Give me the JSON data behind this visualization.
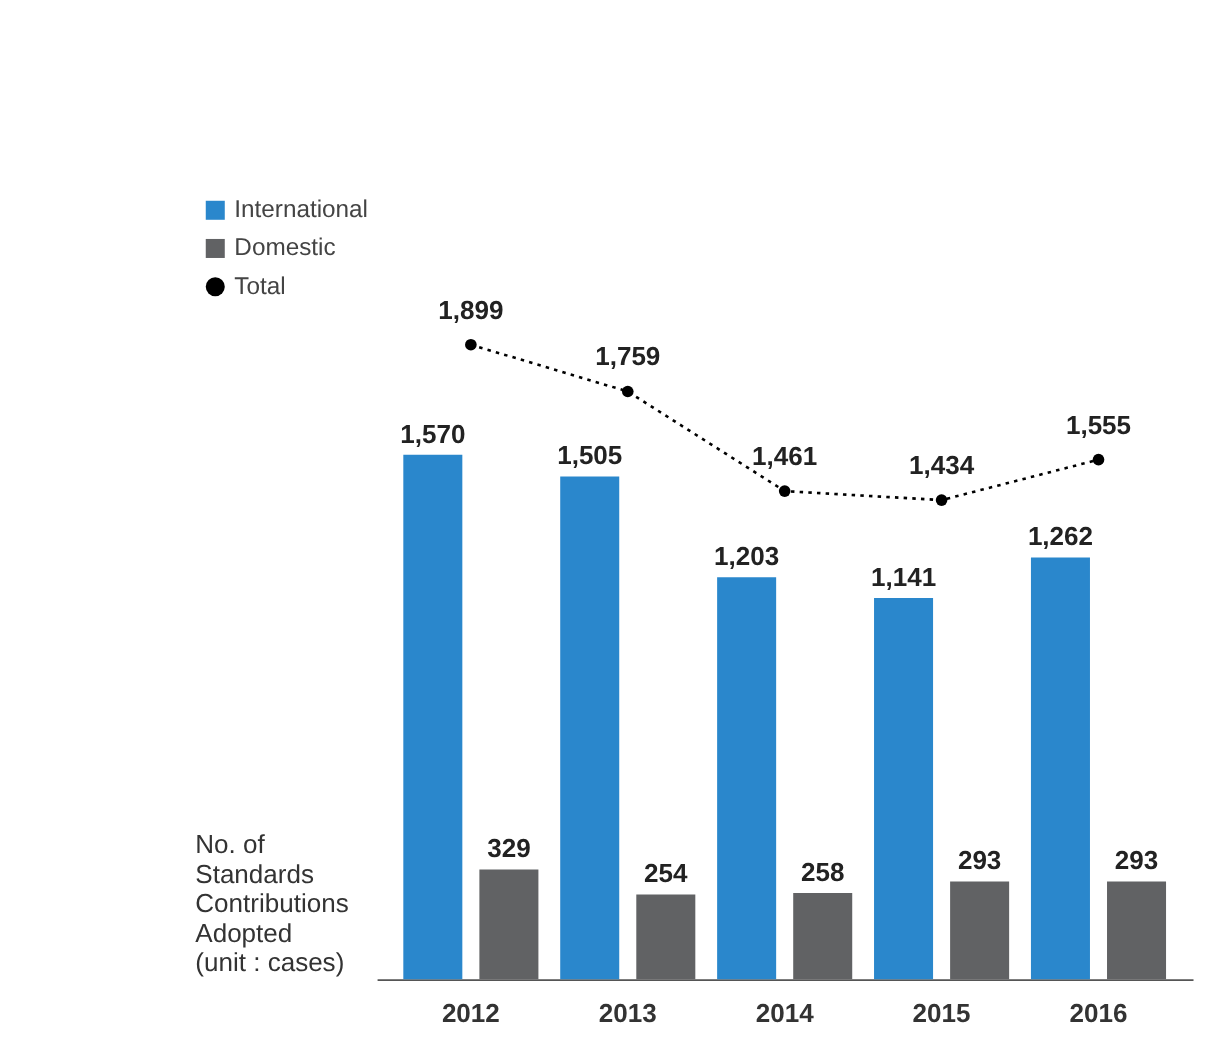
{
  "chart_data": {
    "type": "bar",
    "categories": [
      "2012",
      "2013",
      "2014",
      "2015",
      "2016"
    ],
    "series": [
      {
        "name": "International",
        "color": "#2a87cc",
        "values": [
          1570,
          1505,
          1203,
          1141,
          1262
        ],
        "value_labels": [
          "1,570",
          "1,505",
          "1,203",
          "1,141",
          "1,262"
        ]
      },
      {
        "name": "Domestic",
        "color": "#616264",
        "values": [
          329,
          254,
          258,
          293,
          293
        ],
        "value_labels": [
          "329",
          "254",
          "258",
          "293",
          "293"
        ]
      },
      {
        "name": "Total",
        "type": "line",
        "color": "#000000",
        "line_style": "dotted",
        "marker": "circle",
        "values": [
          1899,
          1759,
          1461,
          1434,
          1555
        ],
        "value_labels": [
          "1,899",
          "1,759",
          "1,461",
          "1,434",
          "1,555"
        ]
      }
    ],
    "ylabel": "No. of\nStandards\nContributions\nAdopted\n(unit : cases)",
    "legend": "top left",
    "grid": false
  }
}
